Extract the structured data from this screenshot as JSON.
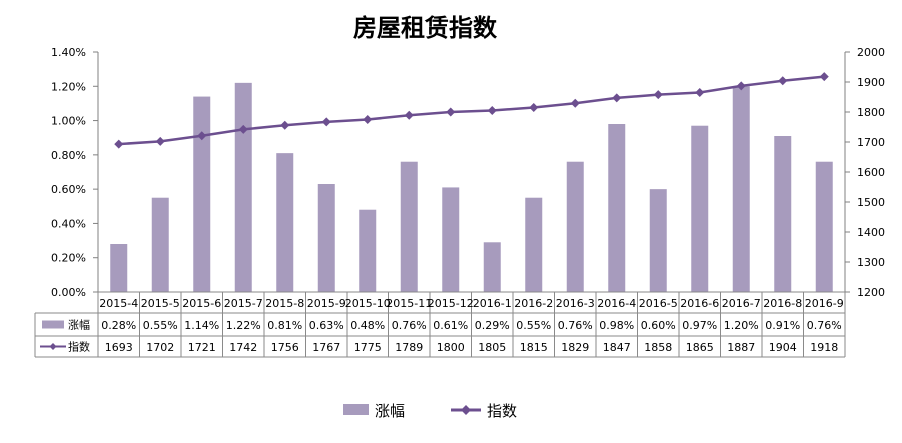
{
  "chart_data": {
    "type": "bar+line",
    "title": "房屋租赁指数",
    "categories": [
      "2015-4",
      "2015-5",
      "2015-6",
      "2015-7",
      "2015-8",
      "2015-9",
      "2015-10",
      "2015-11",
      "2015-12",
      "2016-1",
      "2016-2",
      "2016-3",
      "2016-4",
      "2016-5",
      "2016-6",
      "2016-7",
      "2016-8",
      "2016-9"
    ],
    "series": [
      {
        "name": "涨幅",
        "type": "bar",
        "axis": "left",
        "values": [
          0.28,
          0.55,
          1.14,
          1.22,
          0.81,
          0.63,
          0.48,
          0.76,
          0.61,
          0.29,
          0.55,
          0.76,
          0.98,
          0.6,
          0.97,
          1.2,
          0.91,
          0.76
        ],
        "labels": [
          "0.28%",
          "0.55%",
          "1.14%",
          "1.22%",
          "0.81%",
          "0.63%",
          "0.48%",
          "0.76%",
          "0.61%",
          "0.29%",
          "0.55%",
          "0.76%",
          "0.98%",
          "0.60%",
          "0.97%",
          "1.20%",
          "0.91%",
          "0.76%"
        ],
        "color": "#a79bbd"
      },
      {
        "name": "指数",
        "type": "line",
        "axis": "right",
        "values": [
          1693,
          1702,
          1721,
          1742,
          1756,
          1767,
          1775,
          1789,
          1800,
          1805,
          1815,
          1829,
          1847,
          1858,
          1865,
          1887,
          1904,
          1918
        ],
        "labels": [
          "1693",
          "1702",
          "1721",
          "1742",
          "1756",
          "1767",
          "1775",
          "1789",
          "1800",
          "1805",
          "1815",
          "1829",
          "1847",
          "1858",
          "1865",
          "1887",
          "1904",
          "1918"
        ],
        "color": "#6c4f8f"
      }
    ],
    "y_left": {
      "min": 0,
      "max": 1.4,
      "step": 0.2,
      "tick_labels": [
        "0.00%",
        "0.20%",
        "0.40%",
        "0.60%",
        "0.80%",
        "1.00%",
        "1.20%",
        "1.40%"
      ]
    },
    "y_right": {
      "min": 1200,
      "max": 2000,
      "step": 100,
      "tick_labels": [
        "1200",
        "1300",
        "1400",
        "1500",
        "1600",
        "1700",
        "1800",
        "1900",
        "2000"
      ]
    },
    "grid": false,
    "legend": "bottom-center",
    "data_table": true
  }
}
